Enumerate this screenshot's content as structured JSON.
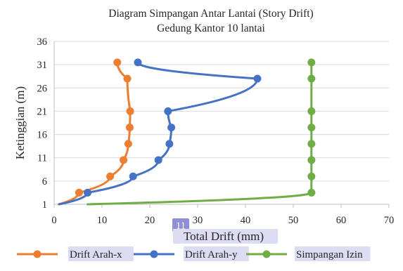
{
  "chart_data": {
    "type": "line",
    "title": "Diagram Simpangan Antar Lantai (Story Drift)",
    "subtitle": "Gedung Kantor 10 lantai",
    "xlabel": "Total Drift (mm)",
    "ylabel": "Ketinggian (m)",
    "xlim": [
      0,
      70
    ],
    "ylim": [
      1,
      36
    ],
    "x_ticks": [
      "0",
      "10",
      "20",
      "30",
      "40",
      "50",
      "60",
      "70"
    ],
    "y_ticks": [
      "1",
      "6",
      "11",
      "16",
      "21",
      "26",
      "31",
      "36"
    ],
    "highlighted_x_tick": "11",
    "grid": "horizontal",
    "legend_position": "bottom",
    "series": [
      {
        "name": "Drift Arah-x",
        "color": "#ED7D31",
        "points": [
          [
            1.0,
            1
          ],
          [
            5.2,
            3.5
          ],
          [
            11.7,
            7.0
          ],
          [
            14.5,
            10.5
          ],
          [
            15.5,
            14.0
          ],
          [
            15.8,
            17.5
          ],
          [
            15.9,
            21.0
          ],
          [
            15.3,
            28.0
          ],
          [
            13.2,
            31.5
          ]
        ]
      },
      {
        "name": "Drift Arah-y",
        "color": "#4472C4",
        "points": [
          [
            1.0,
            1
          ],
          [
            7.0,
            3.5
          ],
          [
            16.5,
            7.0
          ],
          [
            21.8,
            10.5
          ],
          [
            24.1,
            14.0
          ],
          [
            24.5,
            17.5
          ],
          [
            23.8,
            21.0
          ],
          [
            42.5,
            28.0
          ],
          [
            17.5,
            31.5
          ]
        ]
      },
      {
        "name": "Simpangan Izin",
        "color": "#70AD47",
        "points": [
          [
            7.0,
            1
          ],
          [
            53.8,
            3.5
          ],
          [
            53.8,
            7.0
          ],
          [
            53.8,
            10.5
          ],
          [
            53.8,
            14.0
          ],
          [
            53.8,
            17.5
          ],
          [
            53.8,
            21.0
          ],
          [
            53.8,
            28.0
          ],
          [
            53.8,
            31.5
          ]
        ]
      }
    ]
  }
}
